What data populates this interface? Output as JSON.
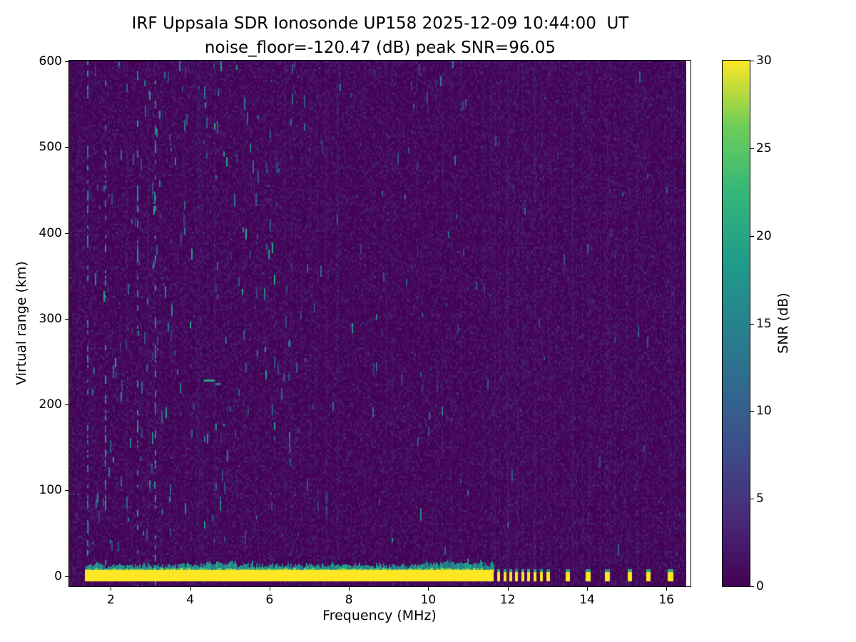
{
  "chart_data": {
    "type": "heatmap",
    "title": "IRF Uppsala SDR Ionosonde UP158 2025-12-09 10:44:00  UT",
    "subtitle": "noise_floor=-120.47 (dB) peak SNR=96.05",
    "xlabel": "Frequency (MHz)",
    "ylabel": "Virtual range (km)",
    "colorbar_label": "SNR (dB)",
    "colormap": "viridis",
    "x_range_mhz": [
      0.95,
      16.5
    ],
    "y_range_km": [
      -12,
      601
    ],
    "x_ticks_mhz": [
      2,
      4,
      6,
      8,
      10,
      12,
      14,
      16
    ],
    "y_ticks_km": [
      0,
      100,
      200,
      300,
      400,
      500,
      600
    ],
    "colorbar_range_db": [
      0,
      30
    ],
    "colorbar_ticks_db": [
      0,
      5,
      10,
      15,
      20,
      25,
      30
    ],
    "noise_floor_db": -120.47,
    "peak_snr_db": 96.05,
    "features": {
      "ground_return_band": {
        "freq_start_mhz": 1.35,
        "freq_end_mhz": 11.65,
        "range_bottom_km": -6,
        "range_top_km": 7,
        "snr_db": 30,
        "fringe_top_km": 14,
        "fringe_snr_db": 16,
        "taller_fringe_regions_mhz": [
          [
            4.4,
            5.3
          ],
          [
            9.8,
            11.65
          ]
        ]
      },
      "intermittent_ground_blips": [
        {
          "freq_mhz": 11.78,
          "width_mhz": 0.07
        },
        {
          "freq_mhz": 11.93,
          "width_mhz": 0.07
        },
        {
          "freq_mhz": 12.08,
          "width_mhz": 0.07
        },
        {
          "freq_mhz": 12.23,
          "width_mhz": 0.07
        },
        {
          "freq_mhz": 12.38,
          "width_mhz": 0.07
        },
        {
          "freq_mhz": 12.53,
          "width_mhz": 0.07
        },
        {
          "freq_mhz": 12.68,
          "width_mhz": 0.07
        },
        {
          "freq_mhz": 12.85,
          "width_mhz": 0.07
        },
        {
          "freq_mhz": 13.02,
          "width_mhz": 0.09
        },
        {
          "freq_mhz": 13.52,
          "width_mhz": 0.1
        },
        {
          "freq_mhz": 14.02,
          "width_mhz": 0.12
        },
        {
          "freq_mhz": 14.52,
          "width_mhz": 0.12
        },
        {
          "freq_mhz": 15.08,
          "width_mhz": 0.1
        },
        {
          "freq_mhz": 15.55,
          "width_mhz": 0.1
        },
        {
          "freq_mhz": 16.1,
          "width_mhz": 0.14
        }
      ],
      "echo_dashes": [
        {
          "freq_start_mhz": 4.35,
          "freq_end_mhz": 4.62,
          "range_km": 228,
          "snr_db": 20
        },
        {
          "freq_start_mhz": 4.63,
          "freq_end_mhz": 4.76,
          "range_km": 224,
          "snr_db": 14
        }
      ],
      "vertical_interference_lines_mhz": [
        4.6,
        7.4
      ],
      "noisy_speckle_columns_mhz": [
        1.4,
        1.85,
        2.65,
        3.1
      ],
      "rfi_stripe_region": {
        "freq_start_mhz": 11.7,
        "freq_end_mhz": 16.45
      },
      "background_noise": {
        "typical_snr_db": [
          0,
          3
        ],
        "speckle_snr_db": [
          8,
          20
        ],
        "speckle_count": 260,
        "bright_speckle_count": 40,
        "speckle_min_freq_mhz": 1.35,
        "speckle_freq_weighting": "denser below 7 MHz, sparse above 11.5 MHz"
      }
    }
  }
}
